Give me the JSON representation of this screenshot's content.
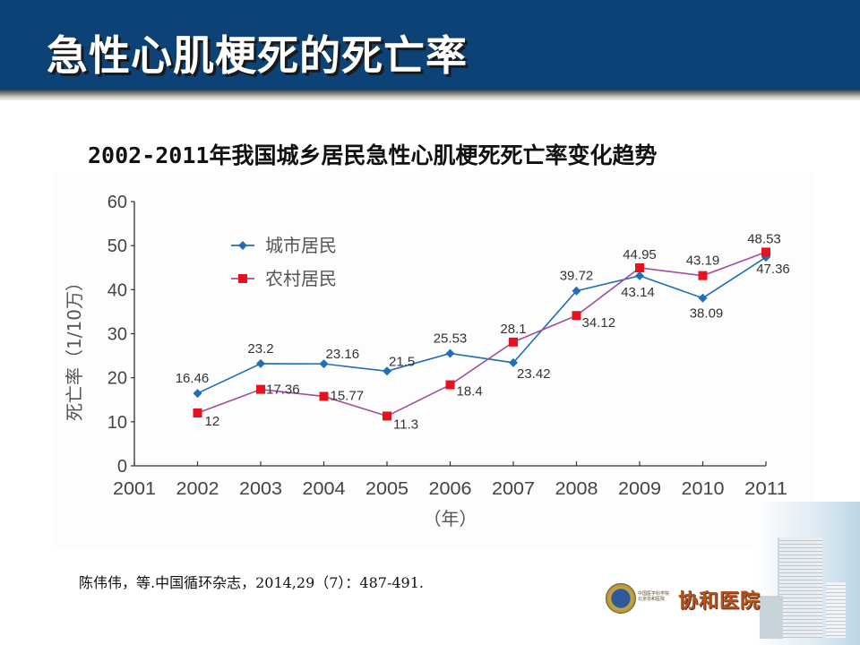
{
  "header": {
    "title": "急性心肌梗死的死亡率",
    "background_color": "#0c4276"
  },
  "citation": "陈伟伟，等.中国循环杂志，2014,29（7）：487-491.",
  "logo": {
    "name": "协和医院",
    "small_text": "中国医学科学院 北京协和医院"
  },
  "chart_data": {
    "type": "line",
    "title": "2002-2011年我国城乡居民急性心肌梗死死亡率变化趋势",
    "xlabel": "（年）",
    "ylabel": "死亡率（1/10万）",
    "x_ticks": [
      "2001",
      "2002",
      "2003",
      "2004",
      "2005",
      "2006",
      "2007",
      "2008",
      "2009",
      "2010",
      "2011"
    ],
    "y_ticks": [
      "0",
      "10",
      "20",
      "30",
      "40",
      "50",
      "60"
    ],
    "xlim": [
      2001,
      2011
    ],
    "ylim": [
      0,
      60
    ],
    "grid": false,
    "legend": {
      "position": "top-left",
      "entries": [
        "城市居民",
        "农村居民"
      ]
    },
    "x": [
      2002,
      2003,
      2004,
      2005,
      2006,
      2007,
      2008,
      2009,
      2010,
      2011
    ],
    "series": [
      {
        "name": "城市居民",
        "color": "#1f6fb8",
        "marker": "diamond",
        "values": [
          16.46,
          23.2,
          23.16,
          21.5,
          25.53,
          23.42,
          39.72,
          43.14,
          38.09,
          47.36
        ],
        "labels": [
          "16.46",
          "23.2",
          "23.16",
          "21.5",
          "25.53",
          "23.42",
          "39.72",
          "43.14",
          "38.09",
          "47.36"
        ]
      },
      {
        "name": "农村居民",
        "color": "#e8121f",
        "line_color": "#a24e9a",
        "marker": "square",
        "values": [
          12,
          17.36,
          15.77,
          11.3,
          18.4,
          28.1,
          34.12,
          44.95,
          43.19,
          48.53
        ],
        "labels": [
          "12",
          "17.36",
          "15.77",
          "11.3",
          "18.4",
          "28.1",
          "34.12",
          "44.95",
          "43.19",
          "48.53"
        ]
      }
    ]
  }
}
